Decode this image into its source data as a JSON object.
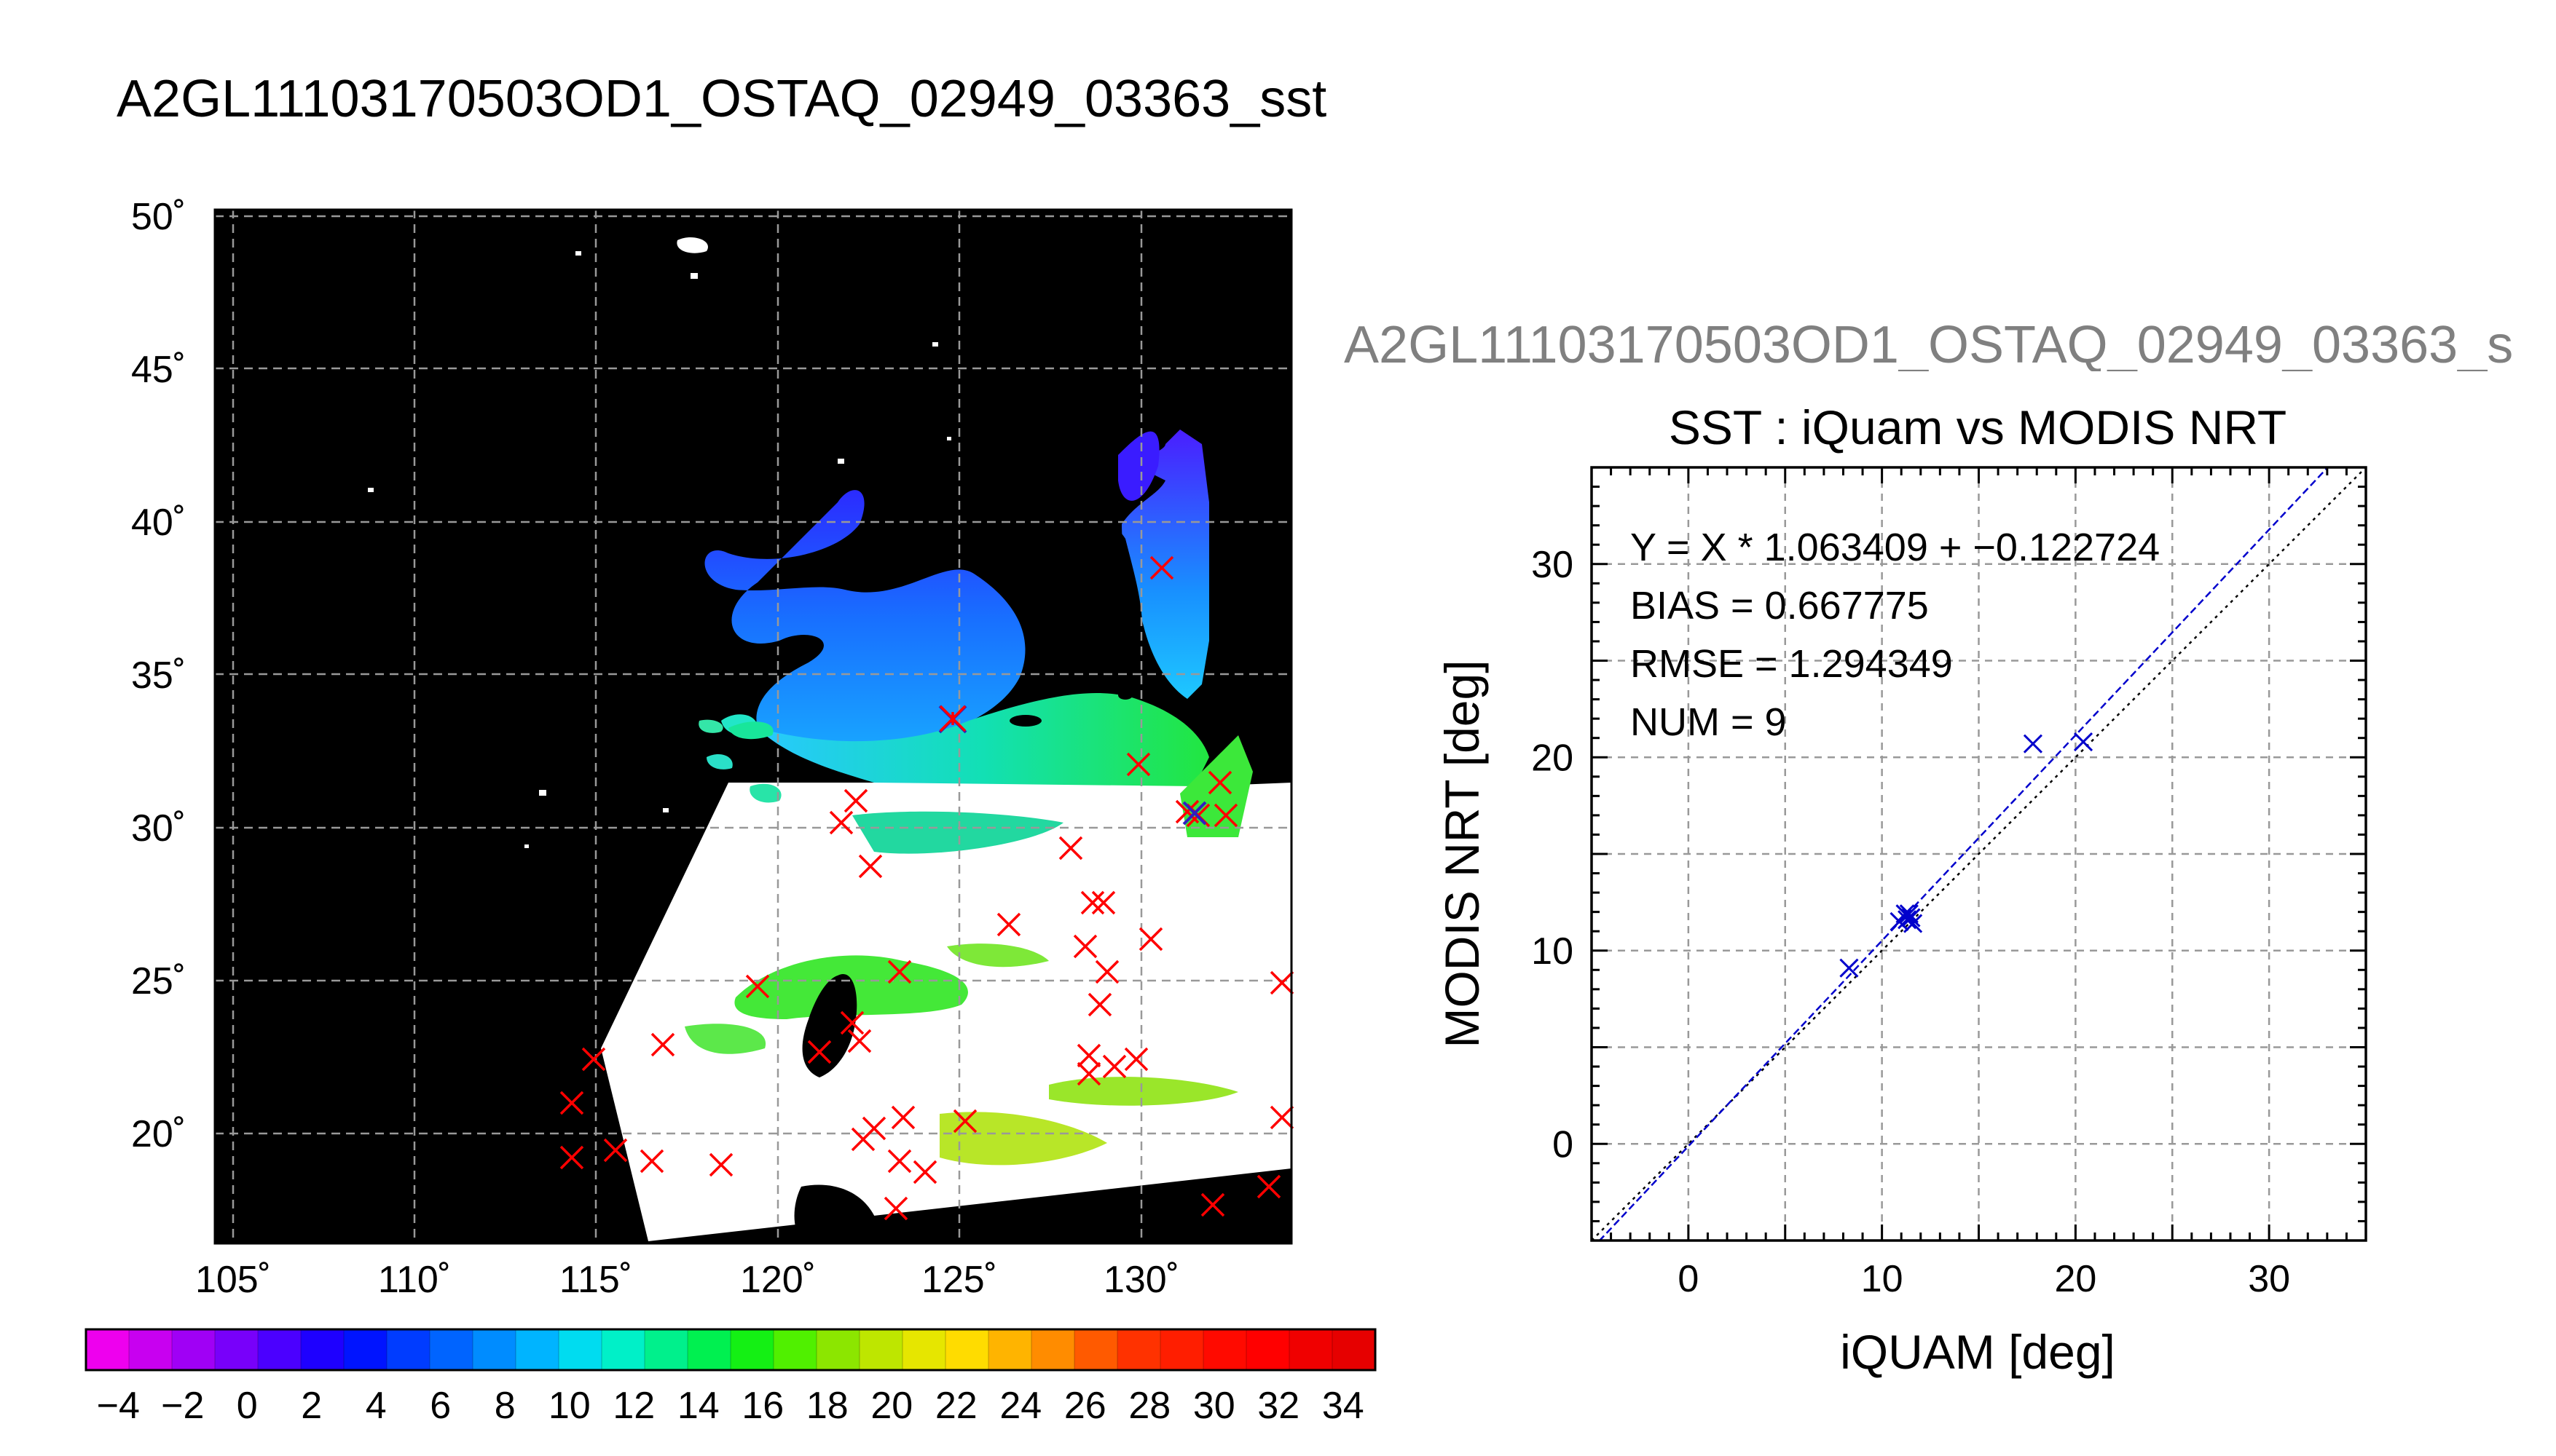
{
  "page": {
    "title": "A2GL11103170503OD1_OSTAQ_02949_03363_sst",
    "right_title": "A2GL11103170503OD1_OSTAQ_02949_03363_s"
  },
  "map": {
    "lat_ticks": [
      "50˚",
      "45˚",
      "40˚",
      "35˚",
      "30˚",
      "25˚",
      "20˚"
    ],
    "lon_ticks": [
      "105˚",
      "110˚",
      "115˚",
      "120˚",
      "125˚",
      "130˚"
    ]
  },
  "colorbar": {
    "labels": [
      "−4",
      "−2",
      "0",
      "2",
      "4",
      "6",
      "8",
      "10",
      "12",
      "14",
      "16",
      "18",
      "20",
      "22",
      "24",
      "26",
      "28",
      "30",
      "32",
      "34"
    ],
    "colors": [
      "#ee00ee",
      "#c800f0",
      "#a000f5",
      "#7800fa",
      "#4b00ff",
      "#1e00ff",
      "#0014ff",
      "#003cff",
      "#0064ff",
      "#008cff",
      "#00b4ff",
      "#00dcf0",
      "#00f0c8",
      "#00f08c",
      "#00f050",
      "#14f014",
      "#50f000",
      "#8ce600",
      "#bee600",
      "#e6e600",
      "#ffdc00",
      "#ffb400",
      "#ff8c00",
      "#ff5a00",
      "#ff3200",
      "#ff1e00",
      "#ff0a00",
      "#ff0000",
      "#f00000",
      "#e60000"
    ]
  },
  "matchups": {
    "marker_color": "#ff0000",
    "labels": [
      "X",
      "*"
    ]
  },
  "scatter": {
    "stats": {
      "fit": "Y = X * 1.063409 + −0.122724",
      "bias": "BIAS = 0.667775",
      "rmse": "RMSE = 1.294349",
      "num": "NUM = 9"
    }
  },
  "chart_data": {
    "type": "scatter",
    "title": "SST : iQuam vs MODIS NRT",
    "xlabel": "iQUAM [deg]",
    "ylabel": "MODIS NRT [deg]",
    "xlim": [
      -5,
      35
    ],
    "ylim": [
      -5,
      35
    ],
    "xticks": [
      "0",
      "10",
      "20",
      "30"
    ],
    "yticks": [
      "0",
      "10",
      "20",
      "30"
    ],
    "grid": true,
    "marker_color": "#0000cc",
    "fit_color": "#0000cc",
    "identity_color": "#000000",
    "fit": {
      "slope": 1.063409,
      "intercept": -0.122724
    },
    "x": [
      8.3,
      10.9,
      11.2,
      11.3,
      11.4,
      11.5,
      11.6,
      17.8,
      20.4
    ],
    "y": [
      9.1,
      11.5,
      11.9,
      11.6,
      11.9,
      11.7,
      11.4,
      20.7,
      20.8
    ]
  }
}
